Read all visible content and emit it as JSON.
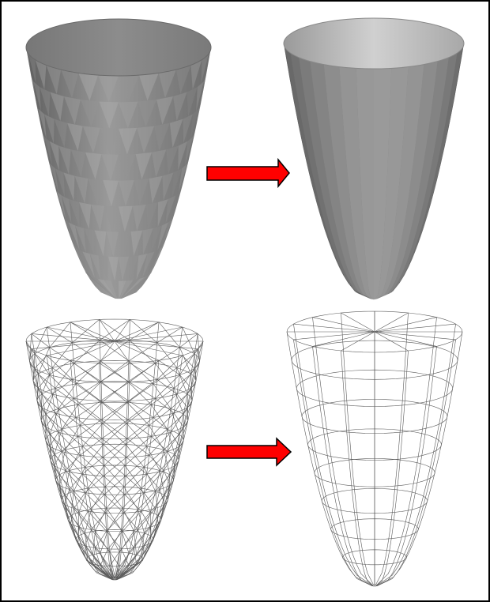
{
  "figure": {
    "panels": [
      {
        "id": "solid-triangulated",
        "style": "solid",
        "mesh": "triangulated"
      },
      {
        "id": "solid-quad",
        "style": "solid",
        "mesh": "quad"
      },
      {
        "id": "wire-triangulated",
        "style": "wireframe",
        "mesh": "triangulated"
      },
      {
        "id": "wire-quad",
        "style": "wireframe",
        "mesh": "quad"
      }
    ],
    "arrows": [
      {
        "id": "arrow-top",
        "direction": "right"
      },
      {
        "id": "arrow-bottom",
        "direction": "right"
      }
    ],
    "colors": {
      "border": "#000000",
      "arrow_fill": "#ff0000",
      "arrow_stroke": "#000000",
      "solid_dark": "#6a6a6a",
      "solid_light": "#b8b8b8",
      "wire": "#555555"
    }
  }
}
